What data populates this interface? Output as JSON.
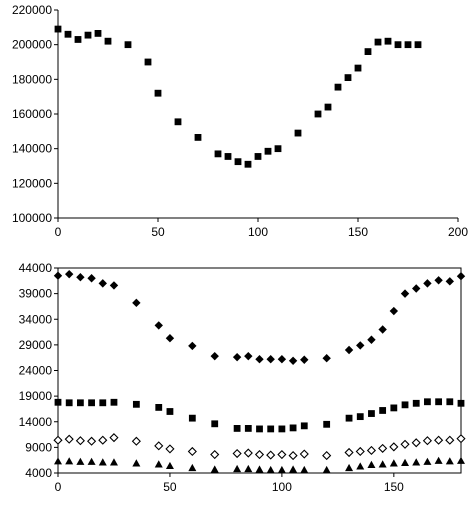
{
  "chart_data": [
    {
      "type": "scatter",
      "title": "",
      "xlabel": "",
      "ylabel": "",
      "xlim": [
        0,
        200
      ],
      "ylim": [
        100000,
        220000
      ],
      "xticks": [
        "0",
        "50",
        "100",
        "150",
        "200"
      ],
      "yticks": [
        "100000",
        "120000",
        "140000",
        "160000",
        "180000",
        "200000",
        "220000"
      ],
      "grid": false,
      "legend": "none",
      "series": [
        {
          "marker": "filled-square",
          "color": "#000000",
          "x": [
            0,
            5,
            10,
            15,
            20,
            25,
            35,
            45,
            50,
            60,
            70,
            80,
            85,
            90,
            95,
            100,
            105,
            110,
            120,
            130,
            135,
            140,
            145,
            150,
            155,
            160,
            165,
            170,
            175,
            180
          ],
          "y": [
            209000,
            206000,
            203000,
            205500,
            206500,
            202000,
            200000,
            190000,
            172000,
            155500,
            146500,
            137000,
            135500,
            132500,
            131000,
            135500,
            138500,
            140000,
            149000,
            160000,
            164000,
            175500,
            181000,
            186500,
            196000,
            201500,
            202000,
            200000,
            200000,
            200000
          ]
        }
      ]
    },
    {
      "type": "scatter",
      "title": "",
      "xlabel": "",
      "ylabel": "",
      "xlim": [
        0,
        180
      ],
      "ylim": [
        4000,
        44000
      ],
      "xticks": [
        "0",
        "50",
        "100",
        "150"
      ],
      "yticks": [
        "4000",
        "9000",
        "14000",
        "19000",
        "24000",
        "29000",
        "34000",
        "39000",
        "44000"
      ],
      "grid": false,
      "legend": "none",
      "series": [
        {
          "marker": "filled-diamond",
          "color": "#000000",
          "x": [
            0,
            5,
            10,
            15,
            20,
            25,
            35,
            45,
            50,
            60,
            70,
            80,
            85,
            90,
            95,
            100,
            105,
            110,
            120,
            130,
            135,
            140,
            145,
            150,
            155,
            160,
            165,
            170,
            175,
            180
          ],
          "y": [
            42500,
            42800,
            42200,
            42000,
            41000,
            40600,
            37200,
            32800,
            30300,
            28800,
            26800,
            26600,
            26800,
            26200,
            26200,
            26200,
            25900,
            26100,
            26400,
            28000,
            28900,
            30000,
            32000,
            35600,
            39000,
            40000,
            41000,
            41600,
            41400,
            42400
          ]
        },
        {
          "marker": "filled-square",
          "color": "#000000",
          "x": [
            0,
            5,
            10,
            15,
            20,
            25,
            35,
            45,
            50,
            60,
            70,
            80,
            85,
            90,
            95,
            100,
            105,
            110,
            120,
            130,
            135,
            140,
            145,
            150,
            155,
            160,
            165,
            170,
            175,
            180
          ],
          "y": [
            17800,
            17700,
            17700,
            17700,
            17700,
            17800,
            17400,
            16800,
            16000,
            14700,
            13600,
            12700,
            12700,
            12600,
            12600,
            12600,
            12800,
            13200,
            13500,
            14700,
            15000,
            15600,
            16200,
            16700,
            17300,
            17600,
            17900,
            17900,
            17900,
            17600
          ]
        },
        {
          "marker": "open-diamond",
          "color": "#000000",
          "x": [
            0,
            5,
            10,
            15,
            20,
            25,
            35,
            45,
            50,
            60,
            70,
            80,
            85,
            90,
            95,
            100,
            105,
            110,
            120,
            130,
            135,
            140,
            145,
            150,
            155,
            160,
            165,
            170,
            175,
            180
          ],
          "y": [
            10400,
            10600,
            10300,
            10200,
            10400,
            10900,
            10200,
            9300,
            8700,
            8200,
            7600,
            7800,
            7900,
            7600,
            7500,
            7600,
            7400,
            7700,
            7400,
            8000,
            8200,
            8400,
            8800,
            9100,
            9600,
            9900,
            10300,
            10400,
            10400,
            10700
          ]
        },
        {
          "marker": "filled-triangle",
          "color": "#000000",
          "x": [
            0,
            5,
            10,
            15,
            20,
            25,
            35,
            45,
            50,
            60,
            70,
            80,
            85,
            90,
            95,
            100,
            105,
            110,
            120,
            130,
            135,
            140,
            145,
            150,
            155,
            160,
            165,
            170,
            175,
            180
          ],
          "y": [
            6300,
            6300,
            6200,
            6200,
            6100,
            6100,
            5900,
            5700,
            5400,
            5000,
            4700,
            4800,
            4800,
            4700,
            4600,
            4600,
            4700,
            4600,
            4600,
            5000,
            5300,
            5600,
            5700,
            5900,
            6000,
            6100,
            6200,
            6400,
            6300,
            6400
          ]
        }
      ]
    }
  ]
}
